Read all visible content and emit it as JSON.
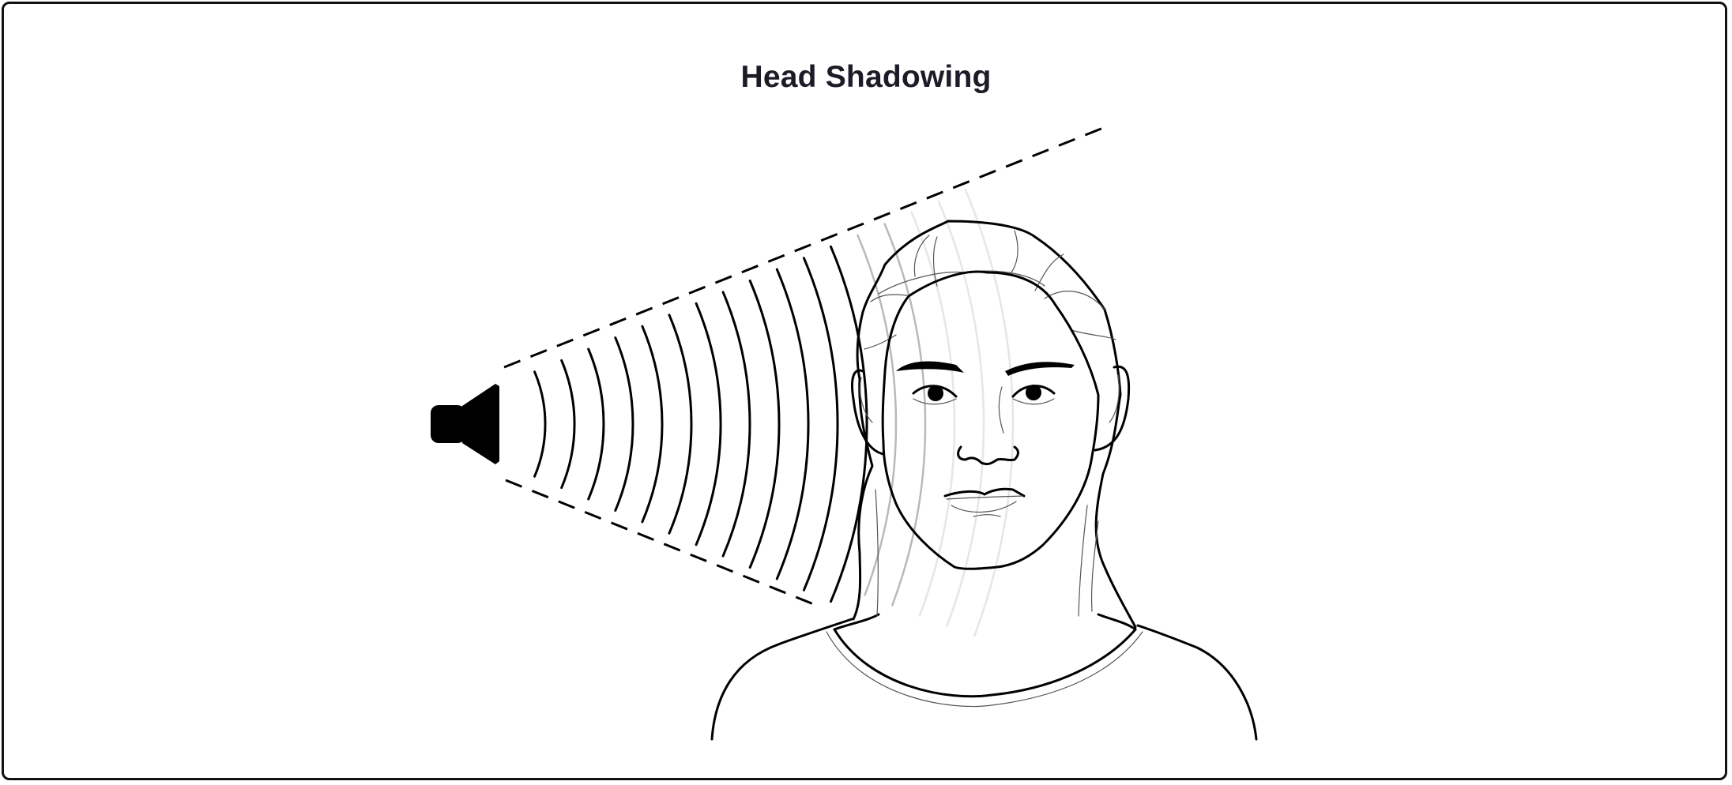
{
  "title": "Head Shadowing",
  "colors": {
    "ink": "#000000",
    "title_text": "#1c1c28",
    "shadowed_wave": "#e6e6e6",
    "transition_wave": "#8a8a8a",
    "background": "#ffffff"
  },
  "icons": {
    "speaker": "speaker-icon"
  },
  "waves": {
    "direct_count": 12,
    "shadowed_count": 5
  }
}
